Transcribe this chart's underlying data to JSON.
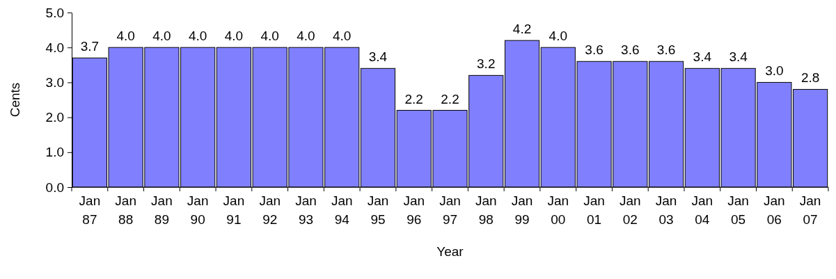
{
  "chart_data": {
    "type": "bar",
    "categories": [
      "Jan 87",
      "Jan 88",
      "Jan 89",
      "Jan 90",
      "Jan 91",
      "Jan 92",
      "Jan 93",
      "Jan 94",
      "Jan 95",
      "Jan 96",
      "Jan 97",
      "Jan 98",
      "Jan 99",
      "Jan 00",
      "Jan 01",
      "Jan 02",
      "Jan 03",
      "Jan 04",
      "Jan 05",
      "Jan 06",
      "Jan 07"
    ],
    "values": [
      3.7,
      4.0,
      4.0,
      4.0,
      4.0,
      4.0,
      4.0,
      4.0,
      3.4,
      2.2,
      2.2,
      3.2,
      4.2,
      4.0,
      3.6,
      3.6,
      3.6,
      3.4,
      3.4,
      3.0,
      2.8
    ],
    "value_labels": [
      "3.7",
      "4.0",
      "4.0",
      "4.0",
      "4.0",
      "4.0",
      "4.0",
      "4.0",
      "3.4",
      "2.2",
      "2.2",
      "3.2",
      "4.2",
      "4.0",
      "3.6",
      "3.6",
      "3.6",
      "3.4",
      "3.4",
      "3.0",
      "2.8"
    ],
    "color": "#8080ff",
    "xlabel": "Year",
    "ylabel": "Cents",
    "ylim": [
      0,
      5
    ],
    "yticks": [
      {
        "value": 0,
        "label": "0.0"
      },
      {
        "value": 1,
        "label": "1.0"
      },
      {
        "value": 2,
        "label": "2.0"
      },
      {
        "value": 3,
        "label": "3.0"
      },
      {
        "value": 4,
        "label": "4.0"
      },
      {
        "value": 5,
        "label": "5.0"
      }
    ],
    "grid": false
  }
}
